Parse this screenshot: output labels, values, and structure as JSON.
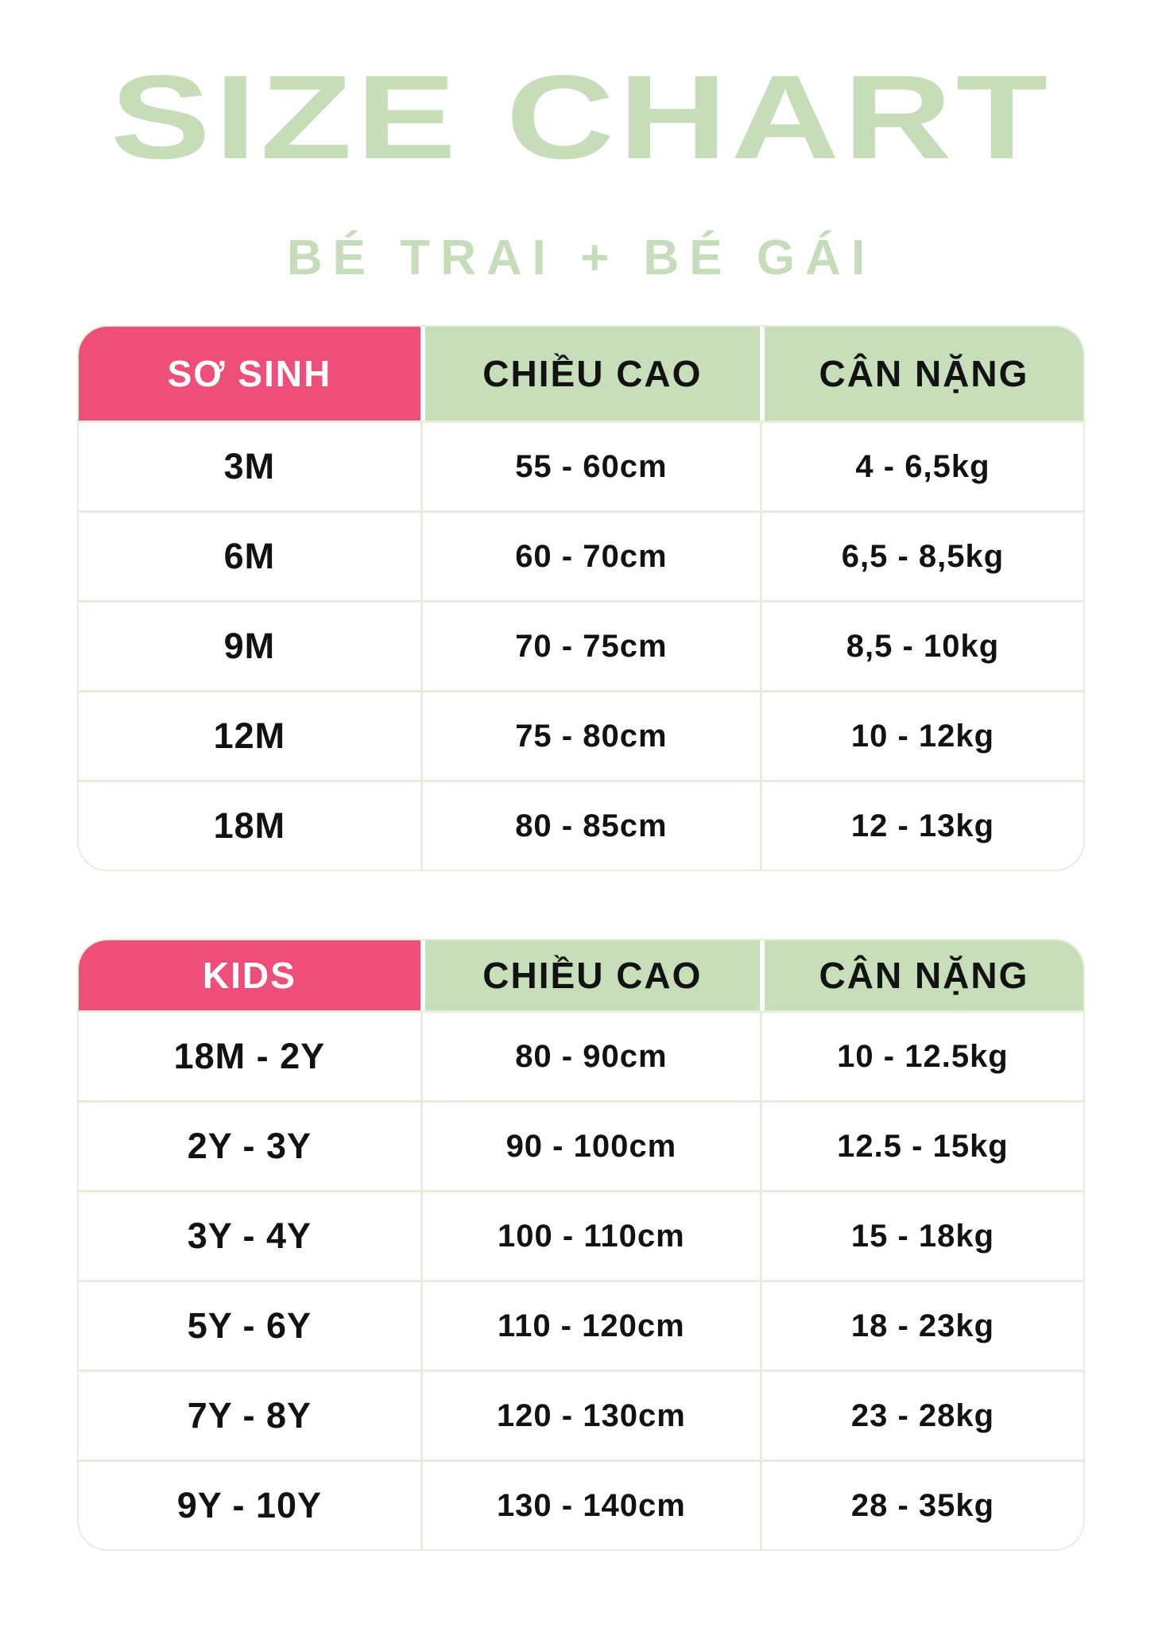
{
  "colors": {
    "pink": "#ee4f78",
    "green": "#c7deba",
    "title_green": "#c5ddb8",
    "line": "#e5eeda",
    "ink": "#121212"
  },
  "chart_data": {
    "type": "table",
    "title": "SIZE CHART",
    "subtitle": "BÉ TRAI + BÉ GÁI",
    "tables": [
      {
        "name": "SƠ SINH",
        "columns": [
          "SƠ SINH",
          "CHIỀU CAO",
          "CÂN NẶNG"
        ],
        "rows": [
          [
            "3M",
            "55 - 60cm",
            "4 - 6,5kg"
          ],
          [
            "6M",
            "60 - 70cm",
            "6,5 - 8,5kg"
          ],
          [
            "9M",
            "70 - 75cm",
            "8,5 - 10kg"
          ],
          [
            "12M",
            "75 - 80cm",
            "10 - 12kg"
          ],
          [
            "18M",
            "80 - 85cm",
            "12 - 13kg"
          ]
        ]
      },
      {
        "name": "KIDS",
        "columns": [
          "KIDS",
          "CHIỀU CAO",
          "CÂN NẶNG"
        ],
        "rows": [
          [
            "18M - 2Y",
            "80 - 90cm",
            "10 - 12.5kg"
          ],
          [
            "2Y - 3Y",
            "90 - 100cm",
            "12.5 - 15kg"
          ],
          [
            "3Y - 4Y",
            "100 - 110cm",
            "15 - 18kg"
          ],
          [
            "5Y - 6Y",
            "110 - 120cm",
            "18 - 23kg"
          ],
          [
            "7Y - 8Y",
            "120 - 130cm",
            "23 - 28kg"
          ],
          [
            "9Y - 10Y",
            "130 - 140cm",
            "28 - 35kg"
          ]
        ]
      }
    ]
  }
}
